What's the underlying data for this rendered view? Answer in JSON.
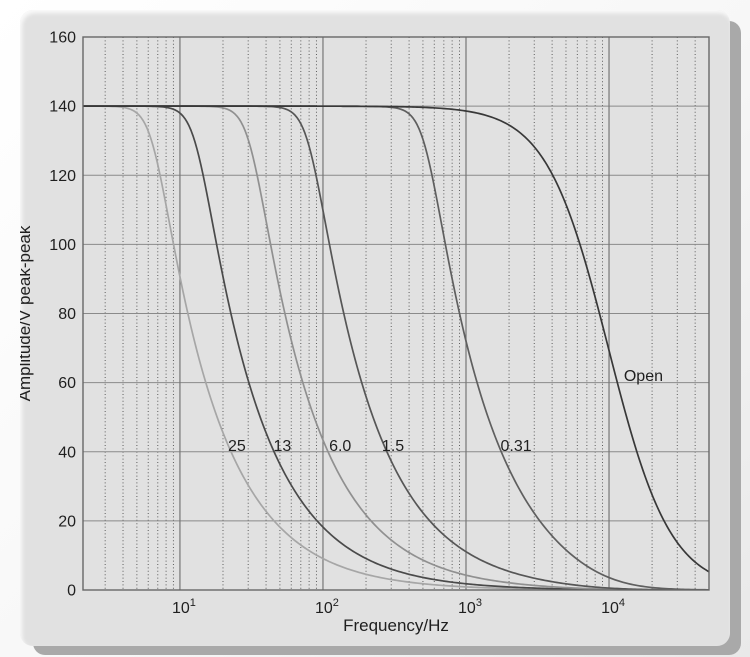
{
  "figure": {
    "kind": "scanned chart figure in raised beveled gray panel",
    "title": ""
  },
  "colors": {
    "panel_bg": "#e1e1e1",
    "panel_shadow": "#a9a9a9",
    "plot_border": "#676767",
    "grid_major": "#8a8a8a",
    "grid_decade": "#767676",
    "grid_minor_dotted": "#4e4e4e",
    "text": "#1f1f1f"
  },
  "chart_data": {
    "type": "line",
    "title": "",
    "xlabel": "Frequency/Hz",
    "ylabel": "Amplitude/V peak-peak",
    "x_scale": "log",
    "x_range": [
      2.1,
      50000
    ],
    "y_range": [
      0,
      160
    ],
    "y_tick_step": 20,
    "y_tick_labels": [
      "0",
      "20",
      "40",
      "60",
      "80",
      "100",
      "120",
      "140",
      "160"
    ],
    "x_decade_ticks": [
      {
        "base": "10",
        "exp": "1",
        "value": 10
      },
      {
        "base": "10",
        "exp": "2",
        "value": 100
      },
      {
        "base": "10",
        "exp": "3",
        "value": 1000
      },
      {
        "base": "10",
        "exp": "4",
        "value": 10000
      }
    ],
    "grid": {
      "h_major": true,
      "v_decades": true,
      "v_minor_dotted": true,
      "minor_mantissas": [
        2,
        3,
        4,
        5,
        6,
        7,
        8,
        9
      ]
    },
    "legend": "inline curve labels",
    "model": {
      "v_max": 140,
      "knee_exponent": 8,
      "amp_bandwidth_hz": 9900
    },
    "series": [
      {
        "label": "25",
        "fc_hz": 6.5,
        "color": "#a6a6a6",
        "label_at": {
          "f": 25,
          "v": 40.2
        },
        "points": {
          "f": [
            2,
            5,
            10,
            20,
            50,
            100,
            500,
            1000
          ],
          "v": [
            140,
            138,
            91,
            45,
            18,
            9,
            1.8,
            0.9
          ]
        }
      },
      {
        "label": "13",
        "fc_hz": 13,
        "color": "#4a4a4a",
        "label_at": {
          "f": 52,
          "v": 40.2
        },
        "points": {
          "f": [
            5,
            10,
            20,
            50,
            100,
            300,
            1000
          ],
          "v": [
            140,
            138,
            91,
            36,
            18,
            6,
            1.8
          ]
        }
      },
      {
        "label": "6.0",
        "fc_hz": 31,
        "color": "#909090",
        "label_at": {
          "f": 132,
          "v": 40.2
        },
        "points": {
          "f": [
            10,
            20,
            30,
            50,
            100,
            300,
            1000
          ],
          "v": [
            140,
            139.6,
            130,
            87,
            43,
            14.5,
            4.3
          ]
        }
      },
      {
        "label": "1.5",
        "fc_hz": 80,
        "color": "#565656",
        "label_at": {
          "f": 309,
          "v": 40.2
        },
        "points": {
          "f": [
            20,
            50,
            80,
            150,
            300,
            1000,
            3000
          ],
          "v": [
            140,
            139.8,
            125,
            75,
            37,
            11,
            3.4
          ]
        }
      },
      {
        "label": "0.31",
        "fc_hz": 520,
        "color": "#5f5f5f",
        "label_at": {
          "f": 2240,
          "v": 40.2
        },
        "points": {
          "f": [
            100,
            300,
            500,
            1000,
            2000,
            5000,
            10000
          ],
          "v": [
            140,
            139.9,
            131,
            72,
            35,
            11.5,
            3.6
          ]
        }
      },
      {
        "label": "Open",
        "fc_hz": null,
        "color": "#383838",
        "label_at": {
          "f": 17400,
          "v": 60.4
        },
        "points": {
          "f": [
            1000,
            2000,
            3000,
            5000,
            10000,
            20000,
            30000,
            50000
          ],
          "v": [
            138.6,
            134.6,
            128,
            112,
            69,
            34,
            14,
            5.5
          ]
        }
      }
    ]
  }
}
